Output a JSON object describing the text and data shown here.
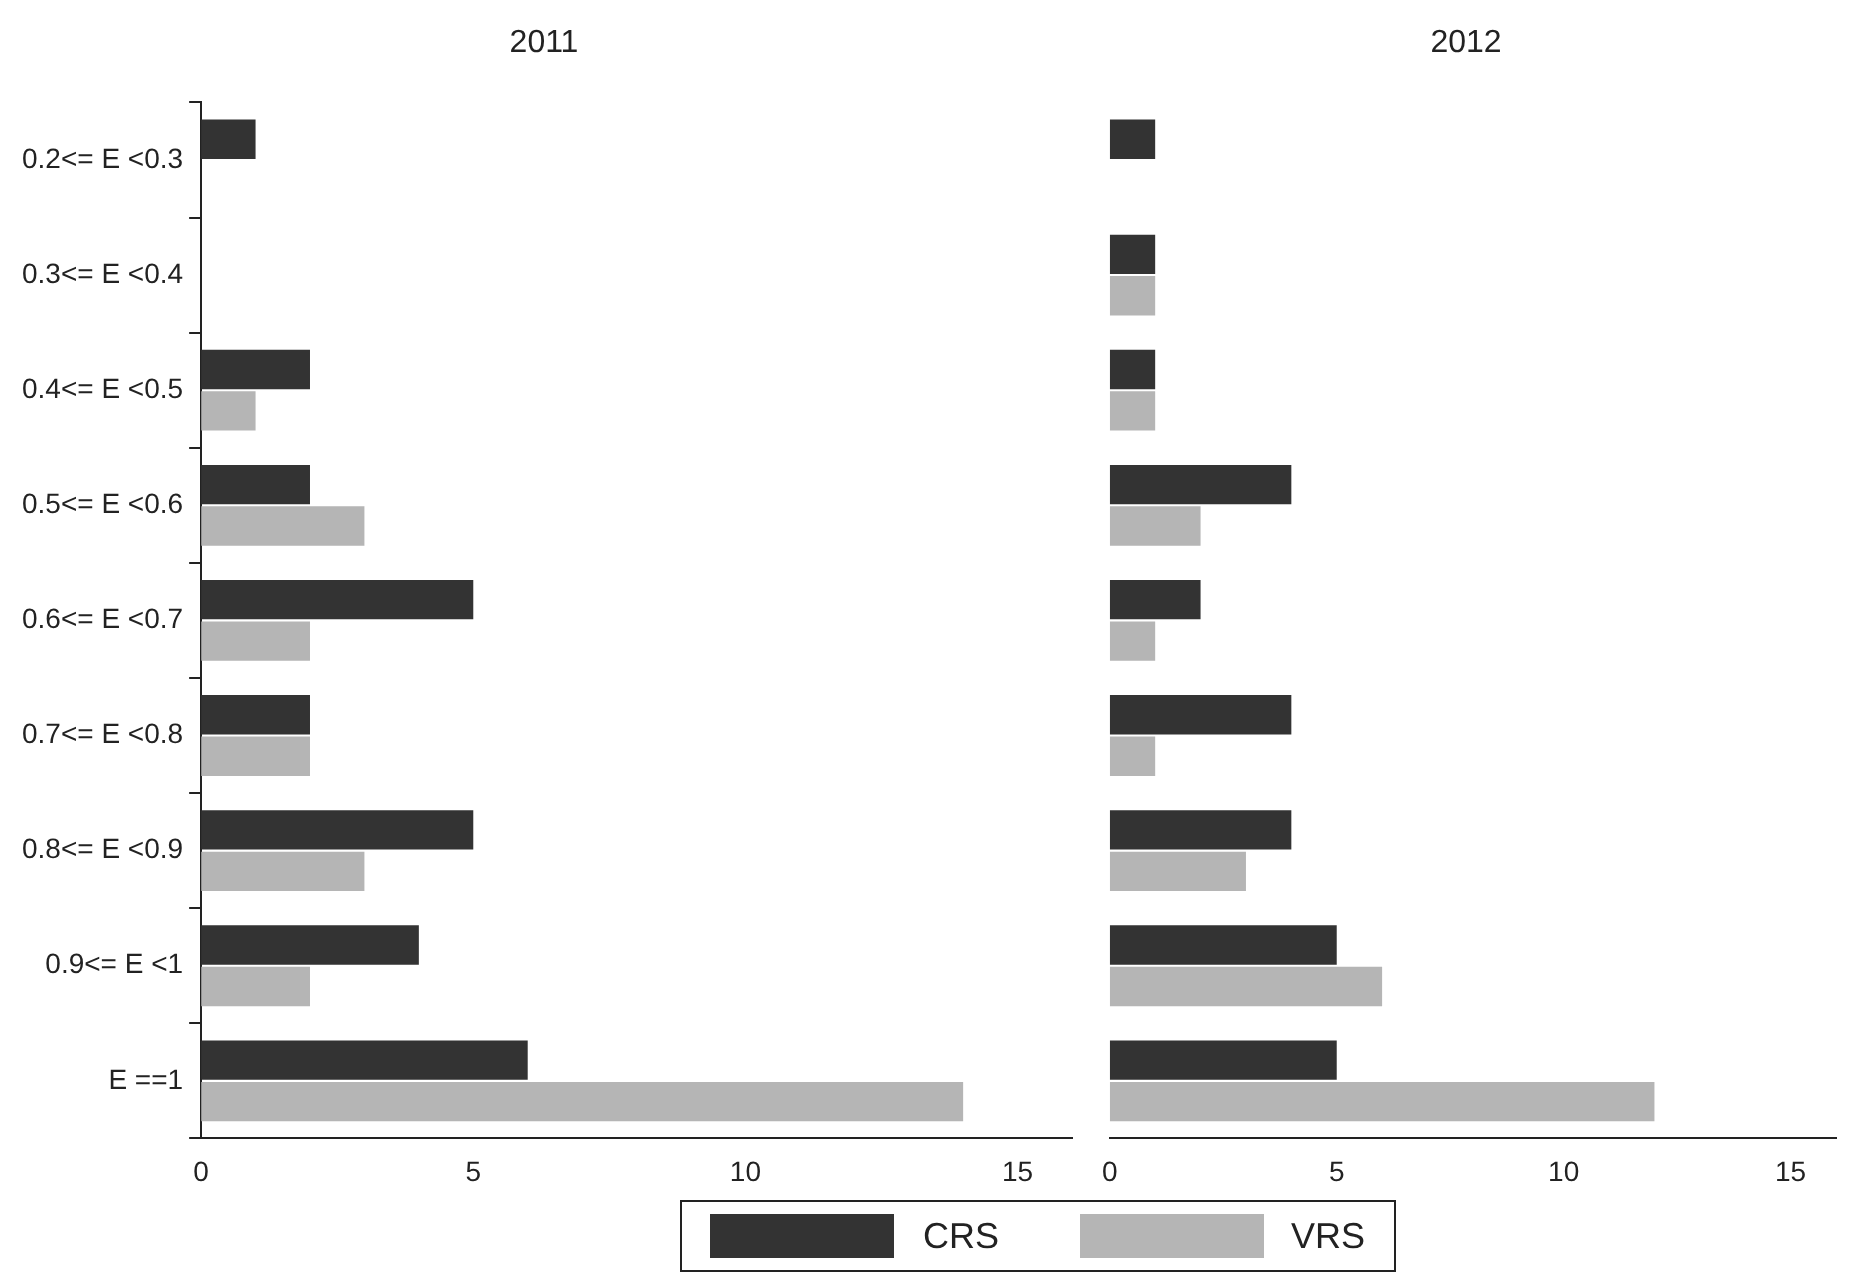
{
  "chart_data": [
    {
      "type": "bar",
      "orientation": "horizontal",
      "title": "2011",
      "categories": [
        "0.2<= E <0.3",
        "0.3<= E <0.4",
        "0.4<= E <0.5",
        "0.5<= E <0.6",
        "0.6<= E <0.7",
        "0.7<= E <0.8",
        "0.8<= E <0.9",
        "0.9<= E <1",
        "E ==1"
      ],
      "series": [
        {
          "name": "CRS",
          "color": "#333333",
          "values": [
            1,
            0,
            2,
            2,
            5,
            2,
            5,
            4,
            6
          ]
        },
        {
          "name": "VRS",
          "color": "#b5b5b5",
          "values": [
            0,
            0,
            1,
            3,
            2,
            2,
            3,
            2,
            14
          ]
        }
      ],
      "xlim": [
        0,
        16
      ],
      "xticks": [
        0,
        5,
        10,
        15
      ],
      "grid": false,
      "legend": "bottom"
    },
    {
      "type": "bar",
      "orientation": "horizontal",
      "title": "2012",
      "categories": [
        null,
        null,
        null,
        null,
        null,
        null,
        null,
        null,
        null
      ],
      "series": [
        {
          "color": "#333333",
          "values": [
            1,
            1,
            1,
            4,
            2,
            4,
            4,
            5,
            5
          ]
        },
        {
          "color": "#b5b5b5",
          "values": [
            0,
            1,
            1,
            2,
            1,
            1,
            3,
            6,
            12
          ]
        }
      ],
      "xlim": [
        0,
        16
      ],
      "xticks": [
        0,
        5,
        10,
        15
      ],
      "grid": false,
      "tick_labels": "x"
    }
  ]
}
